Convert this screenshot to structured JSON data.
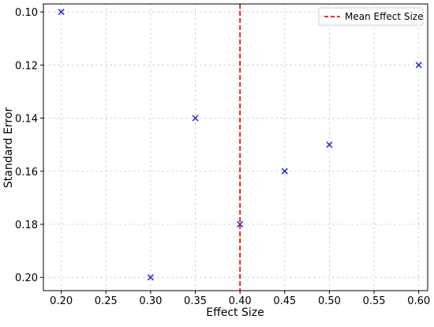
{
  "chart_data": {
    "type": "scatter",
    "title": "",
    "xlabel": "Effect Size",
    "ylabel": "Standard Error",
    "xlim": [
      0.18,
      0.61
    ],
    "ylim": [
      0.205,
      0.097
    ],
    "y_inverted": true,
    "xticks": [
      "0.20",
      "0.25",
      "0.30",
      "0.35",
      "0.40",
      "0.45",
      "0.50",
      "0.55",
      "0.60"
    ],
    "yticks": [
      "0.10",
      "0.12",
      "0.14",
      "0.16",
      "0.18",
      "0.20"
    ],
    "grid": true,
    "legend_position": "top-right",
    "series": [
      {
        "marker": "x",
        "color": "#3333cc",
        "points": [
          {
            "x": 0.2,
            "y": 0.1
          },
          {
            "x": 0.3,
            "y": 0.2
          },
          {
            "x": 0.35,
            "y": 0.14
          },
          {
            "x": 0.4,
            "y": 0.18
          },
          {
            "x": 0.45,
            "y": 0.16
          },
          {
            "x": 0.5,
            "y": 0.15
          },
          {
            "x": 0.6,
            "y": 0.12
          }
        ]
      }
    ],
    "reference_lines": [
      {
        "orientation": "vertical",
        "x": 0.4,
        "label": "Mean Effect Size",
        "color": "#ee1111",
        "style": "dashed"
      }
    ]
  }
}
